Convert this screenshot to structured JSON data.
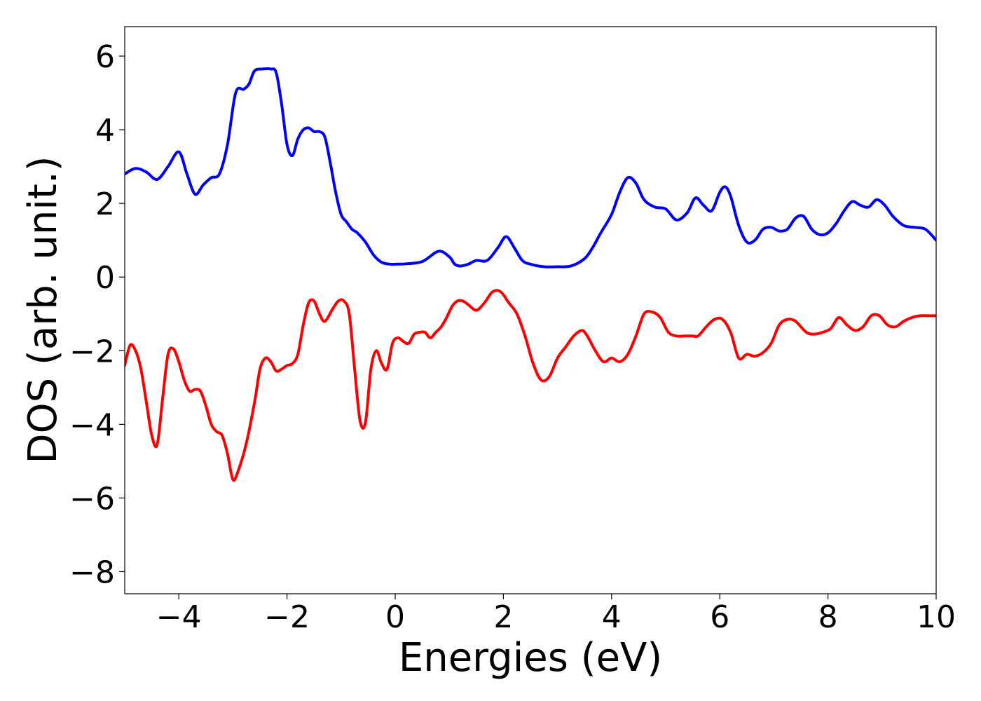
{
  "chart_data": {
    "type": "line",
    "title": "",
    "xlabel": "Energies (eV)",
    "ylabel": "DOS (arb. unit.)",
    "xlim": [
      -5,
      10
    ],
    "ylim": [
      -8.6,
      6.8
    ],
    "xticks": [
      -4,
      -2,
      0,
      2,
      4,
      6,
      8,
      10
    ],
    "yticks": [
      -8,
      -6,
      -4,
      -2,
      0,
      2,
      4,
      6
    ],
    "xtick_labels": [
      "−4",
      "−2",
      "0",
      "2",
      "4",
      "6",
      "8",
      "10"
    ],
    "ytick_labels": [
      "−8",
      "−6",
      "−4",
      "−2",
      "0",
      "2",
      "4",
      "6"
    ],
    "grid": false,
    "series": [
      {
        "color": "#0000ff",
        "x": [
          -5.0,
          -4.8,
          -4.6,
          -4.4,
          -4.2,
          -4.0,
          -3.85,
          -3.7,
          -3.55,
          -3.4,
          -3.25,
          -3.1,
          -2.95,
          -2.8,
          -2.7,
          -2.6,
          -2.45,
          -2.3,
          -2.2,
          -2.1,
          -2.0,
          -1.9,
          -1.8,
          -1.7,
          -1.6,
          -1.5,
          -1.4,
          -1.3,
          -1.2,
          -1.1,
          -1.0,
          -0.9,
          -0.8,
          -0.7,
          -0.55,
          -0.4,
          -0.25,
          -0.1,
          0.0,
          0.2,
          0.5,
          0.8,
          1.0,
          1.1,
          1.2,
          1.35,
          1.5,
          1.7,
          1.9,
          2.05,
          2.2,
          2.35,
          2.5,
          2.75,
          3.0,
          3.25,
          3.5,
          3.65,
          3.8,
          4.0,
          4.15,
          4.3,
          4.45,
          4.6,
          4.8,
          5.0,
          5.2,
          5.4,
          5.55,
          5.7,
          5.85,
          6.0,
          6.1,
          6.2,
          6.35,
          6.5,
          6.65,
          6.8,
          6.95,
          7.1,
          7.25,
          7.4,
          7.55,
          7.7,
          7.85,
          8.0,
          8.15,
          8.3,
          8.45,
          8.6,
          8.75,
          8.9,
          9.05,
          9.2,
          9.4,
          9.6,
          9.8,
          10.0
        ],
        "y": [
          2.8,
          2.95,
          2.85,
          2.65,
          3.0,
          3.4,
          2.8,
          2.25,
          2.5,
          2.7,
          2.8,
          3.6,
          5.0,
          5.1,
          5.25,
          5.6,
          5.65,
          5.65,
          5.55,
          4.7,
          3.6,
          3.3,
          3.75,
          4.0,
          4.05,
          3.95,
          3.95,
          3.8,
          3.1,
          2.3,
          1.7,
          1.5,
          1.3,
          1.2,
          0.95,
          0.6,
          0.4,
          0.35,
          0.35,
          0.36,
          0.42,
          0.7,
          0.55,
          0.35,
          0.3,
          0.35,
          0.45,
          0.45,
          0.8,
          1.1,
          0.8,
          0.45,
          0.35,
          0.28,
          0.28,
          0.3,
          0.5,
          0.8,
          1.2,
          1.7,
          2.3,
          2.7,
          2.55,
          2.1,
          1.9,
          1.85,
          1.55,
          1.75,
          2.15,
          1.95,
          1.8,
          2.3,
          2.45,
          2.2,
          1.4,
          0.95,
          1.0,
          1.3,
          1.35,
          1.25,
          1.3,
          1.6,
          1.65,
          1.3,
          1.15,
          1.2,
          1.45,
          1.8,
          2.05,
          1.95,
          1.9,
          2.1,
          1.95,
          1.65,
          1.4,
          1.35,
          1.3,
          1.0
        ]
      },
      {
        "color": "#ff0000",
        "x": [
          -5.0,
          -4.9,
          -4.8,
          -4.7,
          -4.6,
          -4.5,
          -4.4,
          -4.3,
          -4.2,
          -4.1,
          -4.0,
          -3.9,
          -3.8,
          -3.7,
          -3.6,
          -3.5,
          -3.4,
          -3.3,
          -3.2,
          -3.1,
          -3.0,
          -2.9,
          -2.75,
          -2.6,
          -2.5,
          -2.4,
          -2.3,
          -2.2,
          -2.1,
          -2.0,
          -1.9,
          -1.8,
          -1.7,
          -1.6,
          -1.5,
          -1.4,
          -1.3,
          -1.15,
          -1.05,
          -0.95,
          -0.85,
          -0.75,
          -0.65,
          -0.55,
          -0.45,
          -0.35,
          -0.25,
          -0.15,
          -0.05,
          0.05,
          0.15,
          0.25,
          0.35,
          0.45,
          0.55,
          0.65,
          0.75,
          0.85,
          0.95,
          1.05,
          1.15,
          1.25,
          1.35,
          1.5,
          1.65,
          1.8,
          1.95,
          2.1,
          2.25,
          2.4,
          2.55,
          2.7,
          2.85,
          3.0,
          3.15,
          3.3,
          3.45,
          3.55,
          3.7,
          3.85,
          4.0,
          4.15,
          4.3,
          4.45,
          4.6,
          4.75,
          4.9,
          5.05,
          5.2,
          5.35,
          5.5,
          5.6,
          5.75,
          5.9,
          6.05,
          6.2,
          6.35,
          6.5,
          6.65,
          6.8,
          6.95,
          7.1,
          7.25,
          7.4,
          7.6,
          7.75,
          7.9,
          8.05,
          8.2,
          8.35,
          8.5,
          8.65,
          8.8,
          8.95,
          9.1,
          9.25,
          9.4,
          9.55,
          9.7,
          9.85,
          10.0
        ],
        "y": [
          -2.4,
          -1.85,
          -2.0,
          -2.5,
          -3.4,
          -4.3,
          -4.55,
          -3.3,
          -2.1,
          -1.95,
          -2.3,
          -2.8,
          -3.1,
          -3.05,
          -3.1,
          -3.5,
          -4.0,
          -4.2,
          -4.3,
          -4.8,
          -5.5,
          -5.25,
          -4.5,
          -3.4,
          -2.5,
          -2.2,
          -2.3,
          -2.55,
          -2.5,
          -2.4,
          -2.35,
          -2.1,
          -1.3,
          -0.7,
          -0.65,
          -1.0,
          -1.2,
          -0.85,
          -0.65,
          -0.65,
          -1.0,
          -2.5,
          -3.9,
          -3.95,
          -2.5,
          -2.0,
          -2.35,
          -2.5,
          -1.8,
          -1.65,
          -1.75,
          -1.8,
          -1.55,
          -1.5,
          -1.5,
          -1.65,
          -1.5,
          -1.35,
          -1.1,
          -0.8,
          -0.65,
          -0.65,
          -0.75,
          -0.9,
          -0.7,
          -0.4,
          -0.4,
          -0.7,
          -1.0,
          -1.6,
          -2.35,
          -2.8,
          -2.7,
          -2.2,
          -1.9,
          -1.6,
          -1.45,
          -1.6,
          -2.0,
          -2.3,
          -2.2,
          -2.3,
          -2.1,
          -1.6,
          -1.0,
          -0.95,
          -1.1,
          -1.5,
          -1.6,
          -1.6,
          -1.6,
          -1.6,
          -1.35,
          -1.15,
          -1.15,
          -1.5,
          -2.2,
          -2.1,
          -2.15,
          -2.05,
          -1.8,
          -1.3,
          -1.15,
          -1.2,
          -1.5,
          -1.55,
          -1.5,
          -1.4,
          -1.1,
          -1.3,
          -1.45,
          -1.35,
          -1.05,
          -1.05,
          -1.3,
          -1.35,
          -1.2,
          -1.1,
          -1.05,
          -1.05,
          -1.05
        ]
      }
    ]
  }
}
